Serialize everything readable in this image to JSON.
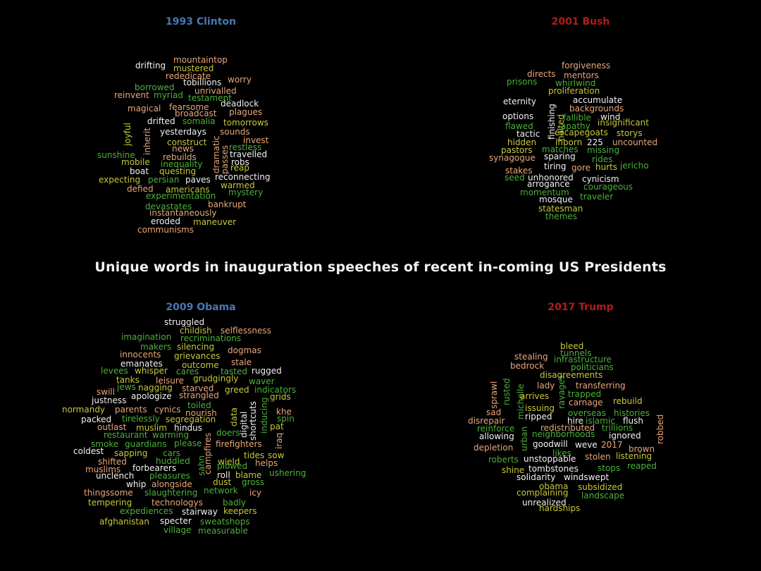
{
  "main_title": "Unique words in inauguration speeches of recent in-coming US Presidents",
  "colors": {
    "background": "#000000",
    "democrat_title": "#4a77b4",
    "republican_title": "#b31b1b",
    "word_palette": [
      "#e8a77a",
      "#4db03a",
      "#f2f2f2",
      "#c8c83c"
    ]
  },
  "chart_data": [
    {
      "type": "wordcloud",
      "title": "1993 Clinton",
      "title_color": "#4a77b4",
      "words": [
        "mountaintop",
        "drifting",
        "mustered",
        "rededicate",
        "worry",
        "tobillions",
        "borrowed",
        "unrivalled",
        "reinvent",
        "myriad",
        "testament",
        "deadlock",
        "magical",
        "fearsome",
        "broadcast",
        "plagues",
        "drifted",
        "somalia",
        "tomorrows",
        "joyful",
        "inherit",
        "yesterdays",
        "sounds",
        "invest",
        "construct",
        "news",
        "restless",
        "sunshine",
        "rebuilds",
        "travelled",
        "mobile",
        "inequality",
        "robs",
        "boat",
        "questing",
        "dramatic",
        "passes",
        "reap",
        "expecting",
        "persian",
        "paves",
        "reconnecting",
        "defied",
        "americans",
        "warmed",
        "experimentation",
        "mystery",
        "devastates",
        "bankrupt",
        "instantaneously",
        "eroded",
        "maneuver",
        "communisms"
      ]
    },
    {
      "type": "wordcloud",
      "title": "2001 Bush",
      "title_color": "#b31b1b",
      "words": [
        "forgiveness",
        "directs",
        "mentors",
        "prisons",
        "whirlwind",
        "proliferation",
        "eternity",
        "accumulate",
        "backgrounds",
        "options",
        "wind",
        "flawed",
        "fallible",
        "apathy",
        "insignificant",
        "finishing",
        "halted",
        "tactic",
        "escapegoats",
        "storys",
        "hidden",
        "inborn",
        "225",
        "uncounted",
        "pastors",
        "matches",
        "missing",
        "synagogue",
        "sparing",
        "rides",
        "stakes",
        "tiring",
        "gore",
        "hurts",
        "jericho",
        "seed",
        "unhonored",
        "cynicism",
        "arrogance",
        "courageous",
        "momentum",
        "traveler",
        "mosque",
        "statesman",
        "themes"
      ]
    },
    {
      "type": "wordcloud",
      "title": "2009 Obama",
      "title_color": "#4a77b4",
      "words": [
        "struggled",
        "childish",
        "selflessness",
        "imagination",
        "recriminations",
        "makers",
        "silencing",
        "dogmas",
        "innocents",
        "grievances",
        "emanates",
        "outcome",
        "stale",
        "levees",
        "whisper",
        "cares",
        "tasted",
        "rugged",
        "tanks",
        "leisure",
        "grudgingly",
        "waver",
        "swill",
        "jews",
        "nagging",
        "starved",
        "greed",
        "indicators",
        "justness",
        "apologize",
        "strangled",
        "grids",
        "toiled",
        "normandy",
        "parents",
        "cynics",
        "nourish",
        "khe",
        "packed",
        "tirelessly",
        "segregation",
        "data",
        "digital",
        "shortcuts",
        "inducing",
        "spin",
        "outlast",
        "muslim",
        "hindus",
        "doers",
        "pat",
        "restaurant",
        "warming",
        "smoke",
        "guardians",
        "please",
        "campfires",
        "firefighters",
        "iraq",
        "coldest",
        "sapping",
        "cars",
        "tides",
        "sow",
        "shifted",
        "huddled",
        "sahn",
        "wield",
        "helps",
        "muslims",
        "forbearers",
        "plowed",
        "unclench",
        "pleasures",
        "roll",
        "blame",
        "ushering",
        "whip",
        "alongside",
        "dust",
        "gross",
        "thingssome",
        "slaughtering",
        "network",
        "icy",
        "tempering",
        "technologys",
        "badly",
        "expediences",
        "stairway",
        "keepers",
        "afghanistan",
        "specter",
        "sweatshops",
        "village",
        "measurable"
      ]
    },
    {
      "type": "wordcloud",
      "title": "2017 Trump",
      "title_color": "#b31b1b",
      "words": [
        "bleed",
        "tunnels",
        "stealing",
        "infrastructure",
        "bedrock",
        "politicians",
        "disagreements",
        "sprawl",
        "rusted",
        "michelle",
        "ravages",
        "lady",
        "transferring",
        "arrives",
        "trapped",
        "carnage",
        "rebuild",
        "issuing",
        "sad",
        "ripped",
        "overseas",
        "histories",
        "disrepair",
        "urban",
        "hire",
        "islamic",
        "flush",
        "robbed",
        "reinforce",
        "redistributed",
        "trillions",
        "allowing",
        "neighborhoods",
        "ignored",
        "depletion",
        "goodwill",
        "weve",
        "2017",
        "brown",
        "likes",
        "roberts",
        "unstoppable",
        "stolen",
        "listening",
        "shine",
        "tombstones",
        "stops",
        "reaped",
        "solidarity",
        "windswept",
        "obama",
        "subsidized",
        "complaining",
        "landscape",
        "unrealized",
        "hardships"
      ]
    }
  ]
}
